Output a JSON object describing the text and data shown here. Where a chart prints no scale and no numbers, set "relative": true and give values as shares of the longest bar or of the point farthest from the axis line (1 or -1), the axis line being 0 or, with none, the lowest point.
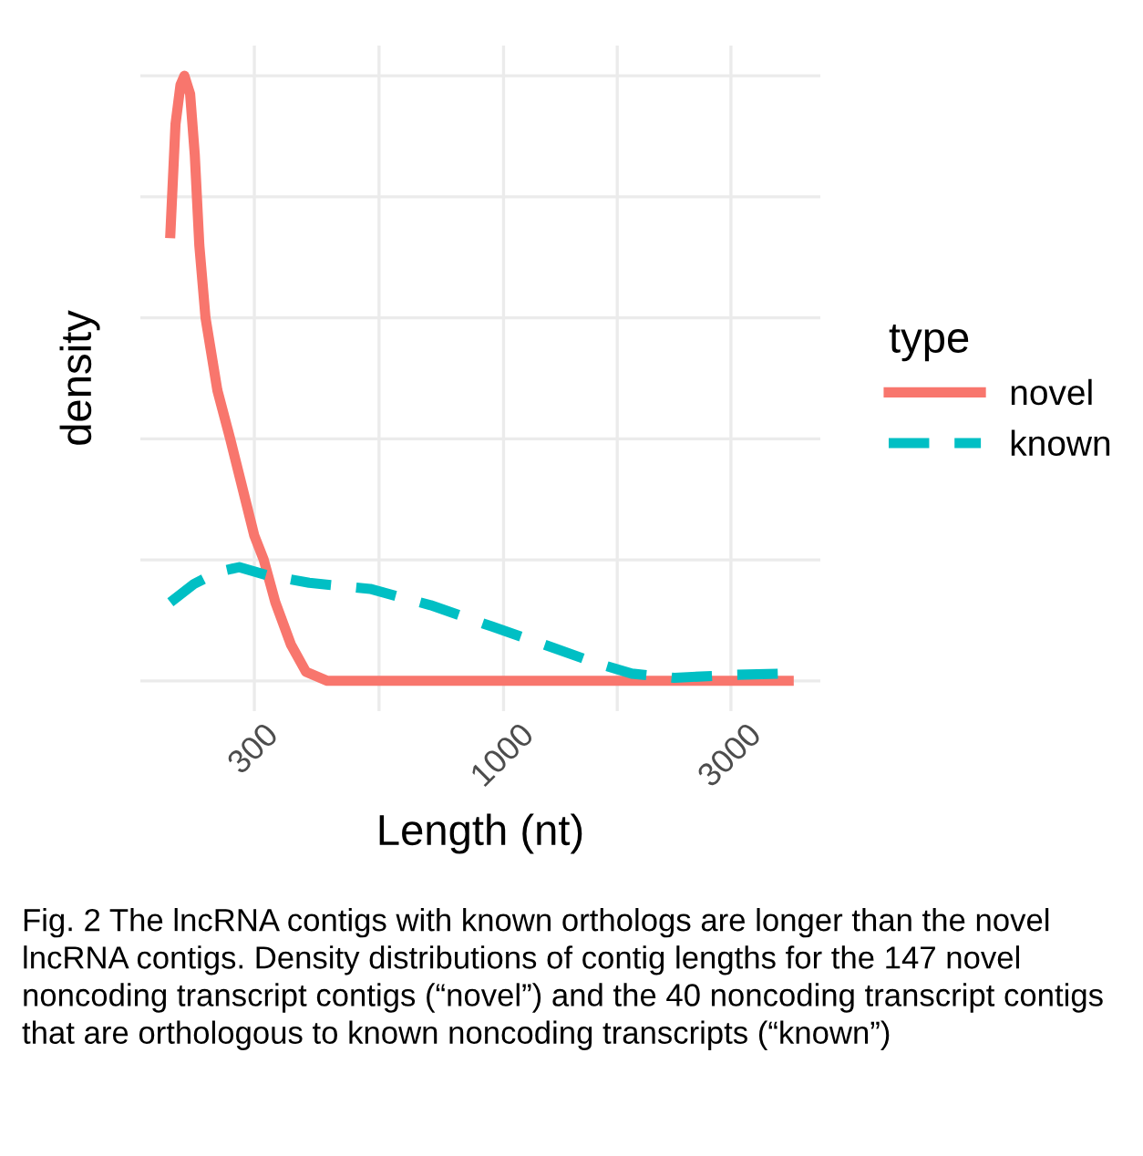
{
  "chart_data": {
    "type": "line",
    "relative": true,
    "xlabel": "Length (nt)",
    "ylabel": "density",
    "legend_title": "type",
    "legend": "right",
    "grid": true,
    "log": "x",
    "xlim": [
      173,
      4620
    ],
    "xticks": [
      300,
      {
        "value": 548,
        "label": null
      },
      1000,
      {
        "value": 1732,
        "label": null
      },
      3000
    ],
    "series": [
      {
        "name": "novel",
        "color": "#f8766d",
        "line_style": "solid",
        "x": [
          200,
          205,
          210,
          214,
          220,
          225,
          230,
          237,
          251,
          267,
          283,
          300,
          314,
          332,
          358,
          385,
          427,
          3965
        ],
        "values": [
          0.74,
          0.92,
          0.985,
          1.0,
          0.97,
          0.87,
          0.72,
          0.6,
          0.48,
          0.4,
          0.32,
          0.24,
          0.2,
          0.13,
          0.06,
          0.015,
          0,
          0
        ]
      },
      {
        "name": "known",
        "color": "#00bfc4",
        "line_style": "dashed",
        "x": [
          200,
          224,
          251,
          279,
          318,
          391,
          525,
          703,
          944,
          1267,
          1557,
          1858,
          2282,
          3061,
          3876
        ],
        "values": [
          0.13,
          0.16,
          0.18,
          0.188,
          0.175,
          0.162,
          0.152,
          0.125,
          0.09,
          0.055,
          0.03,
          0.012,
          0.005,
          0.01,
          0.012
        ]
      }
    ],
    "annotations": [
      "Fig. 2 The lncRNA contigs with known orthologs are longer than the novel lncRNA contigs. Density distributions of contig lengths for the 147 novel noncoding transcript contigs (“novel”) and the 40 noncoding transcript contigs that are orthologous to known noncoding transcripts (“known”)"
    ]
  }
}
